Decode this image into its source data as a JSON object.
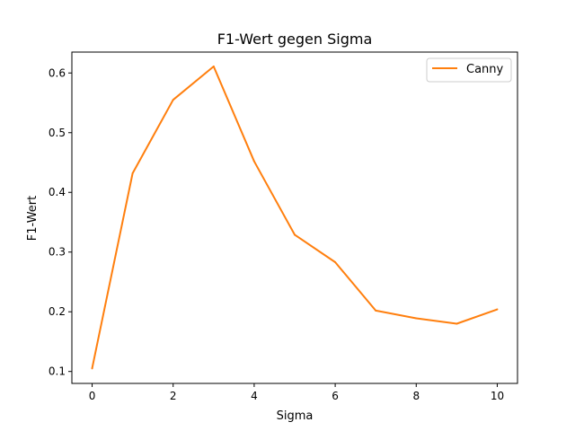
{
  "chart_data": {
    "type": "line",
    "title": "F1-Wert gegen Sigma",
    "xlabel": "Sigma",
    "ylabel": "F1-Wert",
    "xlim": [
      -0.5,
      10.5
    ],
    "ylim": [
      0.08,
      0.635
    ],
    "xticks": [
      0,
      2,
      4,
      6,
      8,
      10
    ],
    "yticks": [
      0.1,
      0.2,
      0.3,
      0.4,
      0.5,
      0.6
    ],
    "grid": false,
    "legend_position": "top-right",
    "series": [
      {
        "name": "Canny",
        "color": "#ff7f0e",
        "x": [
          0,
          1,
          2,
          3,
          4,
          5,
          6,
          7,
          8,
          9,
          10
        ],
        "y": [
          0.105,
          0.432,
          0.555,
          0.611,
          0.452,
          0.329,
          0.283,
          0.202,
          0.189,
          0.18,
          0.204
        ]
      }
    ]
  }
}
